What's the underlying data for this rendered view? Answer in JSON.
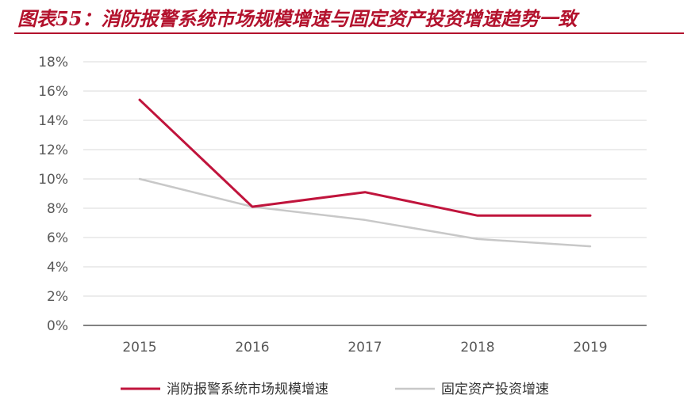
{
  "figure": {
    "title": "图表55：消防报警系统市场规模增速与固定资产投资增速趋势一致"
  },
  "colors": {
    "title": "#b3122d",
    "grid": "#d9d9d9",
    "axis": "#595959",
    "tick_text": "#595959"
  },
  "chart_data": {
    "type": "line",
    "categories": [
      "2015",
      "2016",
      "2017",
      "2018",
      "2019"
    ],
    "ylim": [
      0,
      18
    ],
    "yticks": [
      0,
      2,
      4,
      6,
      8,
      10,
      12,
      14,
      16,
      18
    ],
    "y_tick_labels": [
      "0%",
      "2%",
      "4%",
      "6%",
      "8%",
      "10%",
      "12%",
      "14%",
      "16%",
      "18%"
    ],
    "grid": true,
    "legend_position": "bottom",
    "title": "",
    "xlabel": "",
    "ylabel": "",
    "series": [
      {
        "name": "消防报警系统市场规模增速",
        "color": "#c0143c",
        "values": [
          15.4,
          8.1,
          9.1,
          7.5,
          7.5
        ]
      },
      {
        "name": "固定资产投资增速",
        "color": "#c8c8c8",
        "values": [
          10.0,
          8.1,
          7.2,
          5.9,
          5.4
        ]
      }
    ]
  }
}
